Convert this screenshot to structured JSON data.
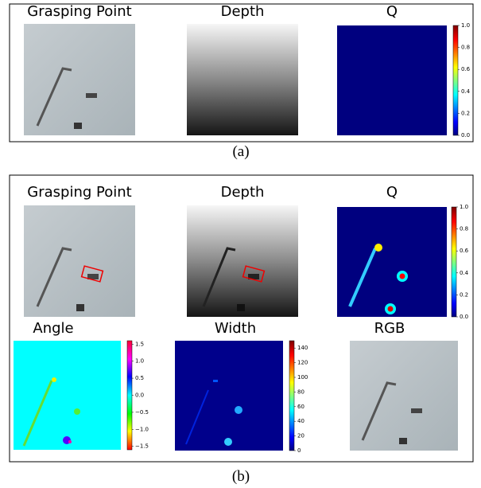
{
  "panel_a": {
    "label": "(a)",
    "titles": [
      "Grasping Point",
      "Depth",
      "Q"
    ],
    "q_colorbar": {
      "lim": [
        0,
        1
      ],
      "ticks": [
        {
          "value": 0,
          "label": "0.0"
        },
        {
          "value": 0.2,
          "label": "0.2"
        },
        {
          "value": 0.4,
          "label": "0.4"
        },
        {
          "value": 0.6,
          "label": "0.6"
        },
        {
          "value": 0.8,
          "label": "0.8"
        },
        {
          "value": 1,
          "label": "1.0"
        }
      ]
    }
  },
  "panel_b": {
    "label": "(b)",
    "titles": [
      "Grasping Point",
      "Depth",
      "Q",
      "Angle",
      "Width",
      "RGB"
    ],
    "q_colorbar": {
      "lim": [
        0,
        1
      ],
      "ticks": [
        {
          "value": 0,
          "label": "0.0"
        },
        {
          "value": 0.2,
          "label": "0.2"
        },
        {
          "value": 0.4,
          "label": "0.4"
        },
        {
          "value": 0.6,
          "label": "0.6"
        },
        {
          "value": 0.8,
          "label": "0.8"
        },
        {
          "value": 1,
          "label": "1.0"
        }
      ]
    },
    "angle_colorbar": {
      "lim": [
        -1.6,
        1.6
      ],
      "ticks": [
        {
          "value": -1.5,
          "label": "−1.5"
        },
        {
          "value": -1,
          "label": "−1.0"
        },
        {
          "value": -0.5,
          "label": "−0.5"
        },
        {
          "value": 0,
          "label": "0.0"
        },
        {
          "value": 0.5,
          "label": "0.5"
        },
        {
          "value": 1,
          "label": "1.0"
        },
        {
          "value": 1.5,
          "label": "1.5"
        }
      ]
    },
    "width_colorbar": {
      "lim": [
        0,
        150
      ],
      "ticks": [
        0,
        20,
        40,
        60,
        80,
        100,
        120,
        140
      ]
    }
  }
}
